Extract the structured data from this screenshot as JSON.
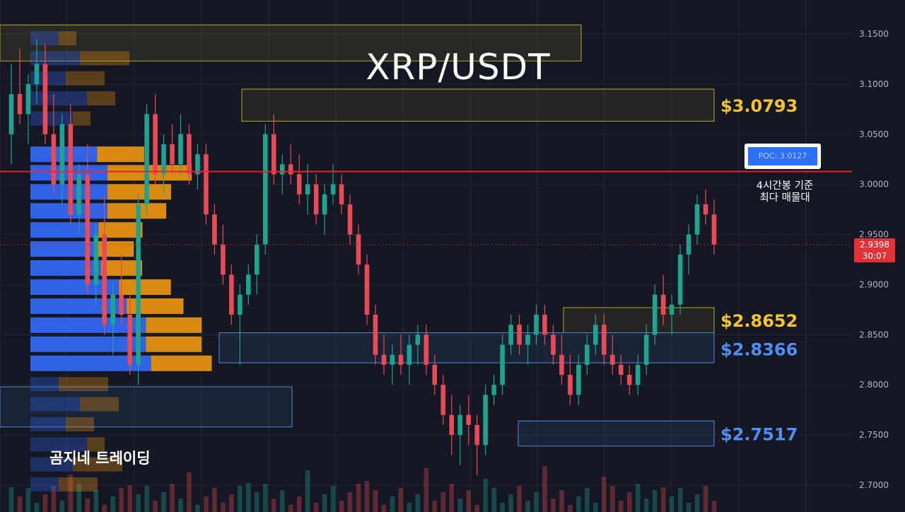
{
  "title": "XRP/USDT",
  "watermark": "곰지네 트레이딩",
  "colors": {
    "background": "#151823",
    "bull": "#1fa391",
    "bear": "#e94a57",
    "volume_buy": "#2f62e6",
    "volume_sell": "#d98a12",
    "poc_line": "#e3262f",
    "zone_yellow": "#b8a830",
    "zone_blue": "#4f8ad9",
    "label_yellow": "#f4c430",
    "label_blue": "#4f8ef5"
  },
  "poc": {
    "label": "POC: 3.0127",
    "caption_line1": "4시간봉 기준",
    "caption_line2": "최다 매물대"
  },
  "current_price": {
    "price": "2.9398",
    "countdown": "30:07"
  },
  "chart_data": {
    "type": "candlestick",
    "symbol": "XRP/USDT",
    "y_axis": {
      "range": [
        2.695,
        3.165
      ],
      "ticks": [
        "3.1500",
        "3.1000",
        "3.0500",
        "3.0000",
        "2.9500",
        "2.9000",
        "2.8500",
        "2.8000",
        "2.7500",
        "2.7000"
      ]
    },
    "poc_price": 3.0127,
    "current_price": 2.9398,
    "levels": [
      {
        "label": "$3.0793",
        "color": "yellow",
        "zone": [
          3.063,
          3.095
        ]
      },
      {
        "label": "$2.8652",
        "color": "yellow",
        "zone": [
          2.852,
          2.877
        ]
      },
      {
        "label": "$2.8366",
        "color": "blue",
        "zone": [
          2.822,
          2.852
        ]
      },
      {
        "label": "$2.7517",
        "color": "blue",
        "zone": [
          2.739,
          2.764
        ]
      }
    ],
    "extra_zones": [
      {
        "color": "yellow",
        "zone": [
          3.123,
          3.159
        ]
      },
      {
        "color": "blue",
        "zone": [
          2.758,
          2.798
        ]
      }
    ],
    "volume_profile": [
      {
        "price": 3.03,
        "buy": 0.52,
        "sell": 0.48
      },
      {
        "price": 3.0115,
        "buy": 0.6,
        "sell": 0.86
      },
      {
        "price": 2.9925,
        "buy": 0.6,
        "sell": 0.65
      },
      {
        "price": 2.9735,
        "buy": 0.6,
        "sell": 0.6
      },
      {
        "price": 2.9545,
        "buy": 0.53,
        "sell": 0.45
      },
      {
        "price": 2.9355,
        "buy": 0.5,
        "sell": 0.4
      },
      {
        "price": 2.9165,
        "buy": 0.55,
        "sell": 0.42
      },
      {
        "price": 2.8975,
        "buy": 0.69,
        "sell": 0.53
      },
      {
        "price": 2.8785,
        "buy": 0.75,
        "sell": 0.58
      },
      {
        "price": 2.8595,
        "buy": 0.9,
        "sell": 0.57
      },
      {
        "price": 2.8405,
        "buy": 0.9,
        "sell": 0.57
      },
      {
        "price": 2.8215,
        "buy": 0.94,
        "sell": 0.62
      }
    ],
    "candles": [
      [
        3.05,
        3.12,
        3.02,
        3.09
      ],
      [
        3.09,
        3.135,
        3.06,
        3.07
      ],
      [
        3.07,
        3.11,
        3.04,
        3.1
      ],
      [
        3.1,
        3.145,
        3.08,
        3.12
      ],
      [
        3.12,
        3.14,
        3.04,
        3.05
      ],
      [
        3.05,
        3.09,
        2.99,
        3.0
      ],
      [
        3.0,
        3.07,
        2.98,
        3.06
      ],
      [
        3.06,
        3.08,
        2.96,
        2.97
      ],
      [
        2.97,
        3.02,
        2.95,
        3.01
      ],
      [
        3.01,
        3.04,
        2.89,
        2.9
      ],
      [
        2.9,
        2.96,
        2.88,
        2.95
      ],
      [
        2.95,
        2.99,
        2.85,
        2.86
      ],
      [
        2.86,
        2.9,
        2.83,
        2.89
      ],
      [
        2.89,
        2.93,
        2.86,
        2.87
      ],
      [
        2.87,
        2.89,
        2.81,
        2.82
      ],
      [
        2.82,
        2.99,
        2.8,
        2.98
      ],
      [
        2.98,
        3.08,
        2.97,
        3.07
      ],
      [
        3.07,
        3.09,
        3.0,
        3.01
      ],
      [
        3.01,
        3.05,
        2.99,
        3.04
      ],
      [
        3.04,
        3.06,
        3.01,
        3.02
      ],
      [
        3.02,
        3.07,
        3.01,
        3.05
      ],
      [
        3.05,
        3.06,
        3.0,
        3.01
      ],
      [
        3.01,
        3.04,
        2.995,
        3.03
      ],
      [
        3.03,
        3.04,
        2.96,
        2.97
      ],
      [
        2.97,
        2.98,
        2.93,
        2.94
      ],
      [
        2.94,
        2.96,
        2.9,
        2.91
      ],
      [
        2.91,
        2.92,
        2.86,
        2.87
      ],
      [
        2.87,
        2.9,
        2.82,
        2.89
      ],
      [
        2.89,
        2.92,
        2.88,
        2.91
      ],
      [
        2.91,
        2.95,
        2.89,
        2.94
      ],
      [
        2.94,
        3.06,
        2.93,
        3.05
      ],
      [
        3.05,
        3.07,
        3.0,
        3.01
      ],
      [
        3.01,
        3.03,
        2.99,
        3.02
      ],
      [
        3.02,
        3.04,
        3.0,
        3.01
      ],
      [
        3.01,
        3.03,
        2.98,
        2.99
      ],
      [
        2.99,
        3.02,
        2.97,
        3.0
      ],
      [
        3.0,
        3.01,
        2.96,
        2.97
      ],
      [
        2.97,
        3.0,
        2.95,
        2.99
      ],
      [
        2.99,
        3.02,
        2.98,
        3.0
      ],
      [
        3.0,
        3.01,
        2.97,
        2.98
      ],
      [
        2.98,
        2.99,
        2.94,
        2.95
      ],
      [
        2.95,
        2.96,
        2.91,
        2.92
      ],
      [
        2.92,
        2.93,
        2.86,
        2.87
      ],
      [
        2.87,
        2.88,
        2.82,
        2.83
      ],
      [
        2.83,
        2.85,
        2.81,
        2.82
      ],
      [
        2.82,
        2.84,
        2.8,
        2.83
      ],
      [
        2.83,
        2.85,
        2.81,
        2.82
      ],
      [
        2.82,
        2.85,
        2.8,
        2.84
      ],
      [
        2.84,
        2.86,
        2.82,
        2.85
      ],
      [
        2.85,
        2.86,
        2.81,
        2.82
      ],
      [
        2.82,
        2.83,
        2.79,
        2.8
      ],
      [
        2.8,
        2.81,
        2.76,
        2.77
      ],
      [
        2.77,
        2.79,
        2.73,
        2.75
      ],
      [
        2.75,
        2.78,
        2.72,
        2.77
      ],
      [
        2.77,
        2.79,
        2.74,
        2.76
      ],
      [
        2.76,
        2.77,
        2.71,
        2.74
      ],
      [
        2.74,
        2.8,
        2.73,
        2.79
      ],
      [
        2.79,
        2.81,
        2.78,
        2.8
      ],
      [
        2.8,
        2.85,
        2.79,
        2.84
      ],
      [
        2.84,
        2.87,
        2.83,
        2.86
      ],
      [
        2.86,
        2.87,
        2.83,
        2.84
      ],
      [
        2.84,
        2.86,
        2.82,
        2.85
      ],
      [
        2.85,
        2.88,
        2.84,
        2.87
      ],
      [
        2.87,
        2.88,
        2.84,
        2.85
      ],
      [
        2.85,
        2.86,
        2.82,
        2.83
      ],
      [
        2.83,
        2.85,
        2.8,
        2.81
      ],
      [
        2.81,
        2.83,
        2.78,
        2.79
      ],
      [
        2.79,
        2.83,
        2.78,
        2.82
      ],
      [
        2.82,
        2.85,
        2.81,
        2.84
      ],
      [
        2.84,
        2.87,
        2.83,
        2.86
      ],
      [
        2.86,
        2.87,
        2.82,
        2.83
      ],
      [
        2.83,
        2.85,
        2.81,
        2.82
      ],
      [
        2.82,
        2.83,
        2.8,
        2.81
      ],
      [
        2.81,
        2.82,
        2.79,
        2.8
      ],
      [
        2.8,
        2.83,
        2.79,
        2.82
      ],
      [
        2.82,
        2.86,
        2.81,
        2.85
      ],
      [
        2.85,
        2.9,
        2.84,
        2.89
      ],
      [
        2.89,
        2.91,
        2.86,
        2.87
      ],
      [
        2.87,
        2.89,
        2.85,
        2.88
      ],
      [
        2.88,
        2.94,
        2.87,
        2.93
      ],
      [
        2.93,
        2.96,
        2.91,
        2.95
      ],
      [
        2.95,
        2.99,
        2.94,
        2.98
      ],
      [
        2.98,
        2.995,
        2.96,
        2.97
      ],
      [
        2.97,
        2.985,
        2.93,
        2.94
      ]
    ]
  }
}
